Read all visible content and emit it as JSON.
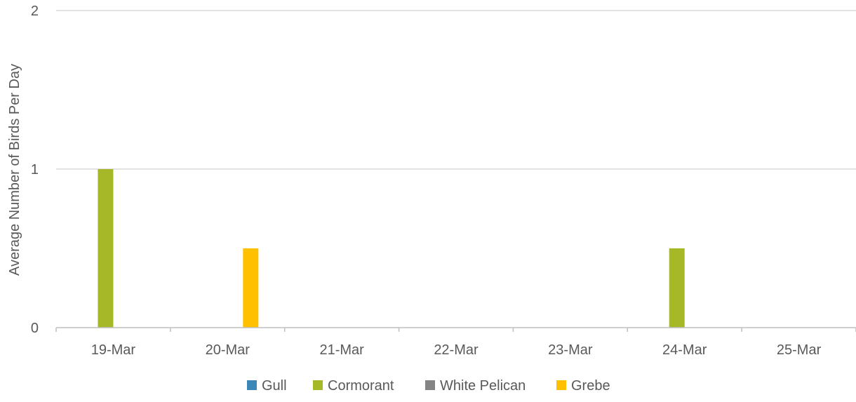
{
  "chart_data": {
    "type": "bar",
    "title": "",
    "xlabel": "",
    "ylabel": "Average Number of Birds Per Day",
    "ylim": [
      0,
      2
    ],
    "yticks": [
      0,
      1,
      2
    ],
    "grid": true,
    "legend_position": "bottom",
    "categories": [
      "19-Mar",
      "20-Mar",
      "21-Mar",
      "22-Mar",
      "23-Mar",
      "24-Mar",
      "25-Mar"
    ],
    "series": [
      {
        "name": "Gull",
        "color": "#3a87b8",
        "values": [
          0,
          0,
          0,
          0,
          0,
          0,
          0
        ]
      },
      {
        "name": "Cormorant",
        "color": "#a6b727",
        "values": [
          1,
          0,
          0,
          0,
          0,
          0.5,
          0
        ]
      },
      {
        "name": "White Pelican",
        "color": "#848484",
        "values": [
          0,
          0,
          0,
          0,
          0,
          0,
          0
        ]
      },
      {
        "name": "Grebe",
        "color": "#ffc000",
        "values": [
          0,
          0.5,
          0,
          0,
          0,
          0,
          0
        ]
      }
    ],
    "colors": {
      "gridline": "#d9d9d9",
      "axis": "#bfbfbf",
      "text": "#595959"
    }
  }
}
